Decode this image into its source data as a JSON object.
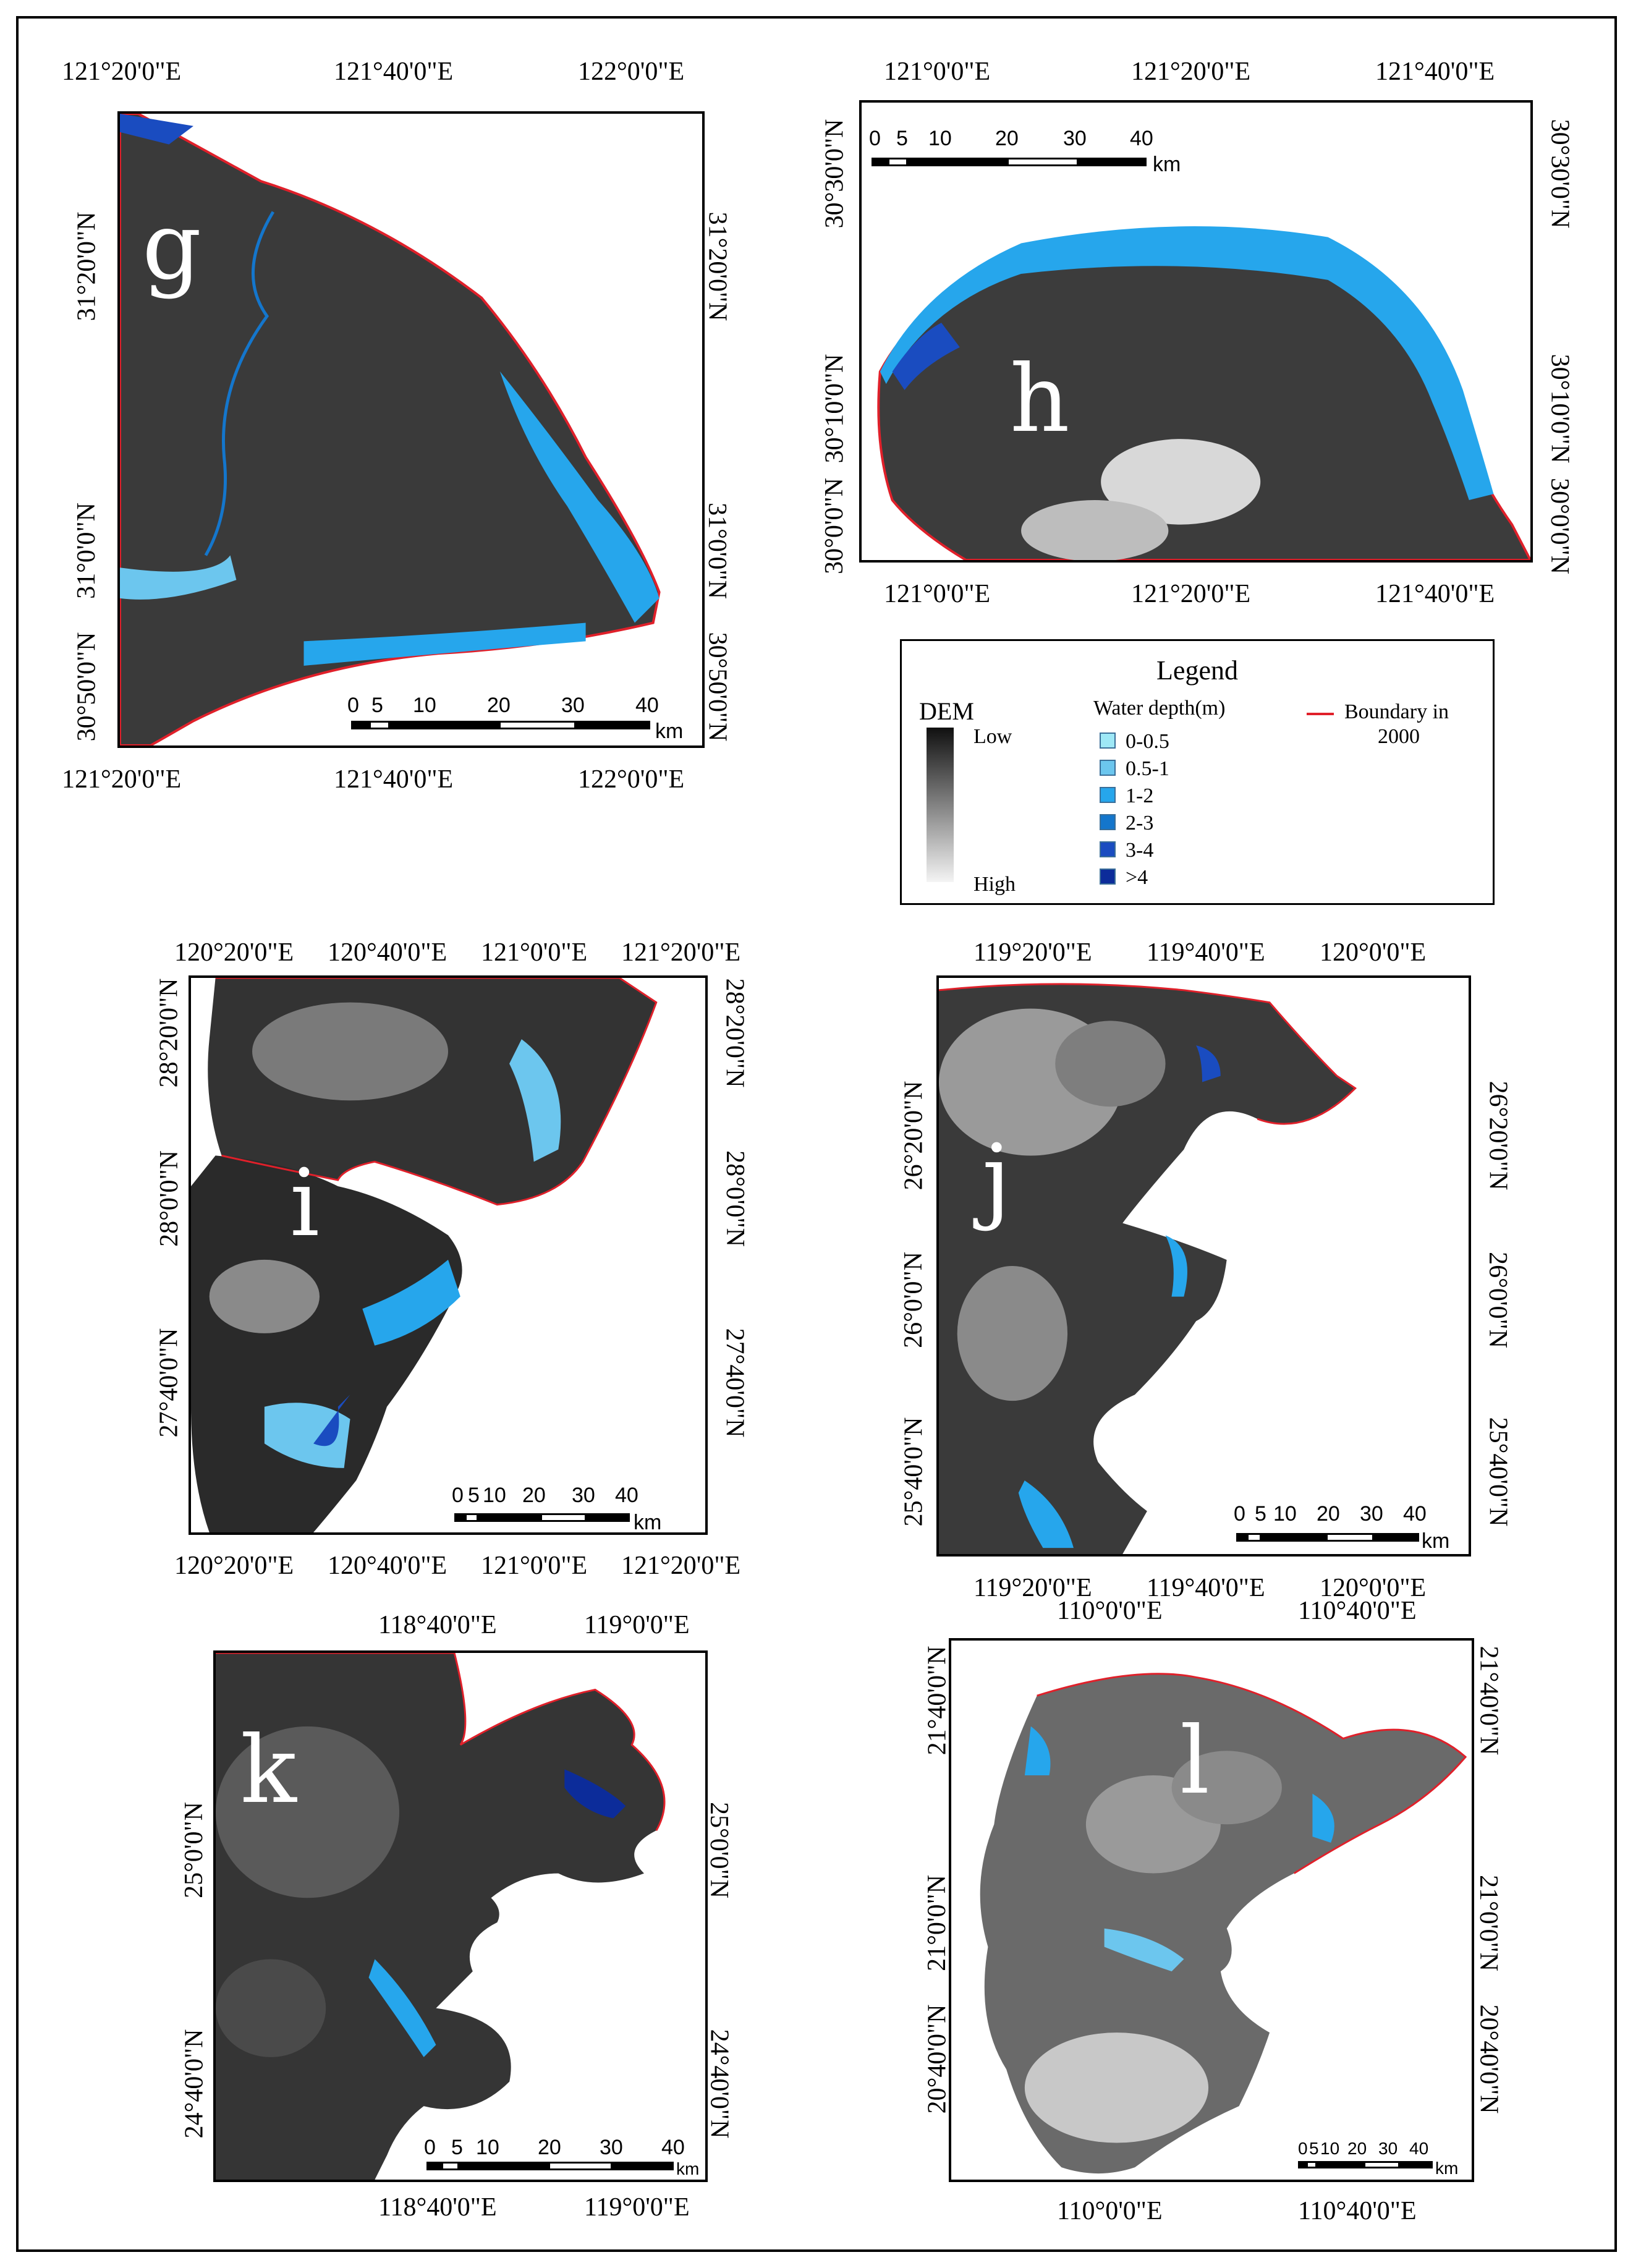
{
  "colors": {
    "depth_0_0_5": "#9ee8f6",
    "depth_0_5_1": "#6cc6ee",
    "depth_1_2": "#26a6ec",
    "depth_2_3": "#1476cc",
    "depth_3_4": "#1a4cc0",
    "depth_gt4": "#0c2c9a",
    "boundary": "#e0202a",
    "dem_low": "#101010",
    "dem_high": "#f2f2f2"
  },
  "panels": {
    "g": {
      "letter": "g",
      "top_labels": [
        "121°20'0\"E",
        "121°40'0\"E",
        "122°0'0\"E"
      ],
      "bottom_labels": [
        "121°20'0\"E",
        "121°40'0\"E",
        "122°0'0\"E"
      ],
      "left_labels": [
        "31°20'0\"N",
        "31°0'0\"N",
        "30°50'0\"N"
      ],
      "right_labels": [
        "31°20'0\"N",
        "31°0'0\"N",
        "30°50'0\"N"
      ],
      "scale": [
        "0",
        "5",
        "10",
        "20",
        "30",
        "40",
        "km"
      ]
    },
    "h": {
      "letter": "h",
      "top_labels": [
        "121°0'0\"E",
        "121°20'0\"E",
        "121°40'0\"E"
      ],
      "bottom_labels": [
        "121°0'0\"E",
        "121°20'0\"E",
        "121°40'0\"E"
      ],
      "left_labels": [
        "30°30'0\"N",
        "30°10'0\"N",
        "30°0'0\"N"
      ],
      "right_labels": [
        "30°30'0\"N",
        "30°10'0\"N",
        "30°0'0\"N"
      ],
      "scale": [
        "0",
        "5",
        "10",
        "20",
        "30",
        "40",
        "km"
      ]
    },
    "i": {
      "letter": "i",
      "top_labels": [
        "120°20'0\"E",
        "120°40'0\"E",
        "121°0'0\"E",
        "121°20'0\"E"
      ],
      "bottom_labels": [
        "120°20'0\"E",
        "120°40'0\"E",
        "121°0'0\"E",
        "121°20'0\"E"
      ],
      "left_labels": [
        "28°20'0\"N",
        "28°0'0\"N",
        "27°40'0\"N"
      ],
      "right_labels": [
        "28°20'0\"N",
        "28°0'0\"N",
        "27°40'0\"N"
      ],
      "scale": [
        "0",
        "5",
        "10",
        "20",
        "30",
        "40",
        "km"
      ]
    },
    "j": {
      "letter": "j",
      "top_labels": [
        "119°20'0\"E",
        "119°40'0\"E",
        "120°0'0\"E"
      ],
      "bottom_labels": [
        "119°20'0\"E",
        "119°40'0\"E",
        "120°0'0\"E"
      ],
      "left_labels": [
        "26°20'0\"N",
        "26°0'0\"N",
        "25°40'0\"N"
      ],
      "right_labels": [
        "26°20'0\"N",
        "26°0'0\"N",
        "25°40'0\"N"
      ],
      "scale": [
        "0",
        "5",
        "10",
        "20",
        "30",
        "40",
        "km"
      ]
    },
    "k": {
      "letter": "k",
      "top_labels": [
        "118°40'0\"E",
        "119°0'0\"E"
      ],
      "bottom_labels": [
        "118°40'0\"E",
        "119°0'0\"E"
      ],
      "left_labels": [
        "25°0'0\"N",
        "24°40'0\"N"
      ],
      "right_labels": [
        "25°0'0\"N",
        "24°40'0\"N"
      ],
      "scale": [
        "0",
        "5",
        "10",
        "20",
        "30",
        "40",
        "km"
      ]
    },
    "l": {
      "letter": "l",
      "top_labels": [
        "110°0'0\"E",
        "110°40'0\"E"
      ],
      "bottom_labels": [
        "110°0'0\"E",
        "110°40'0\"E"
      ],
      "left_labels": [
        "21°40'0\"N",
        "21°0'0\"N",
        "20°40'0\"N"
      ],
      "right_labels": [
        "21°40'0\"N",
        "21°0'0\"N",
        "20°40'0\"N"
      ],
      "scale": [
        "0",
        "5",
        "10",
        "20",
        "30",
        "40",
        "km"
      ]
    }
  },
  "legend": {
    "title": "Legend",
    "dem_title": "DEM",
    "dem_low": "Low",
    "dem_high": "High",
    "water_title": "Water depth(m)",
    "depth_classes": [
      "0-0.5",
      "0.5-1",
      "1-2",
      "2-3",
      "3-4",
      ">4"
    ],
    "boundary_label_1": "Boundary in",
    "boundary_label_2": "2000"
  }
}
